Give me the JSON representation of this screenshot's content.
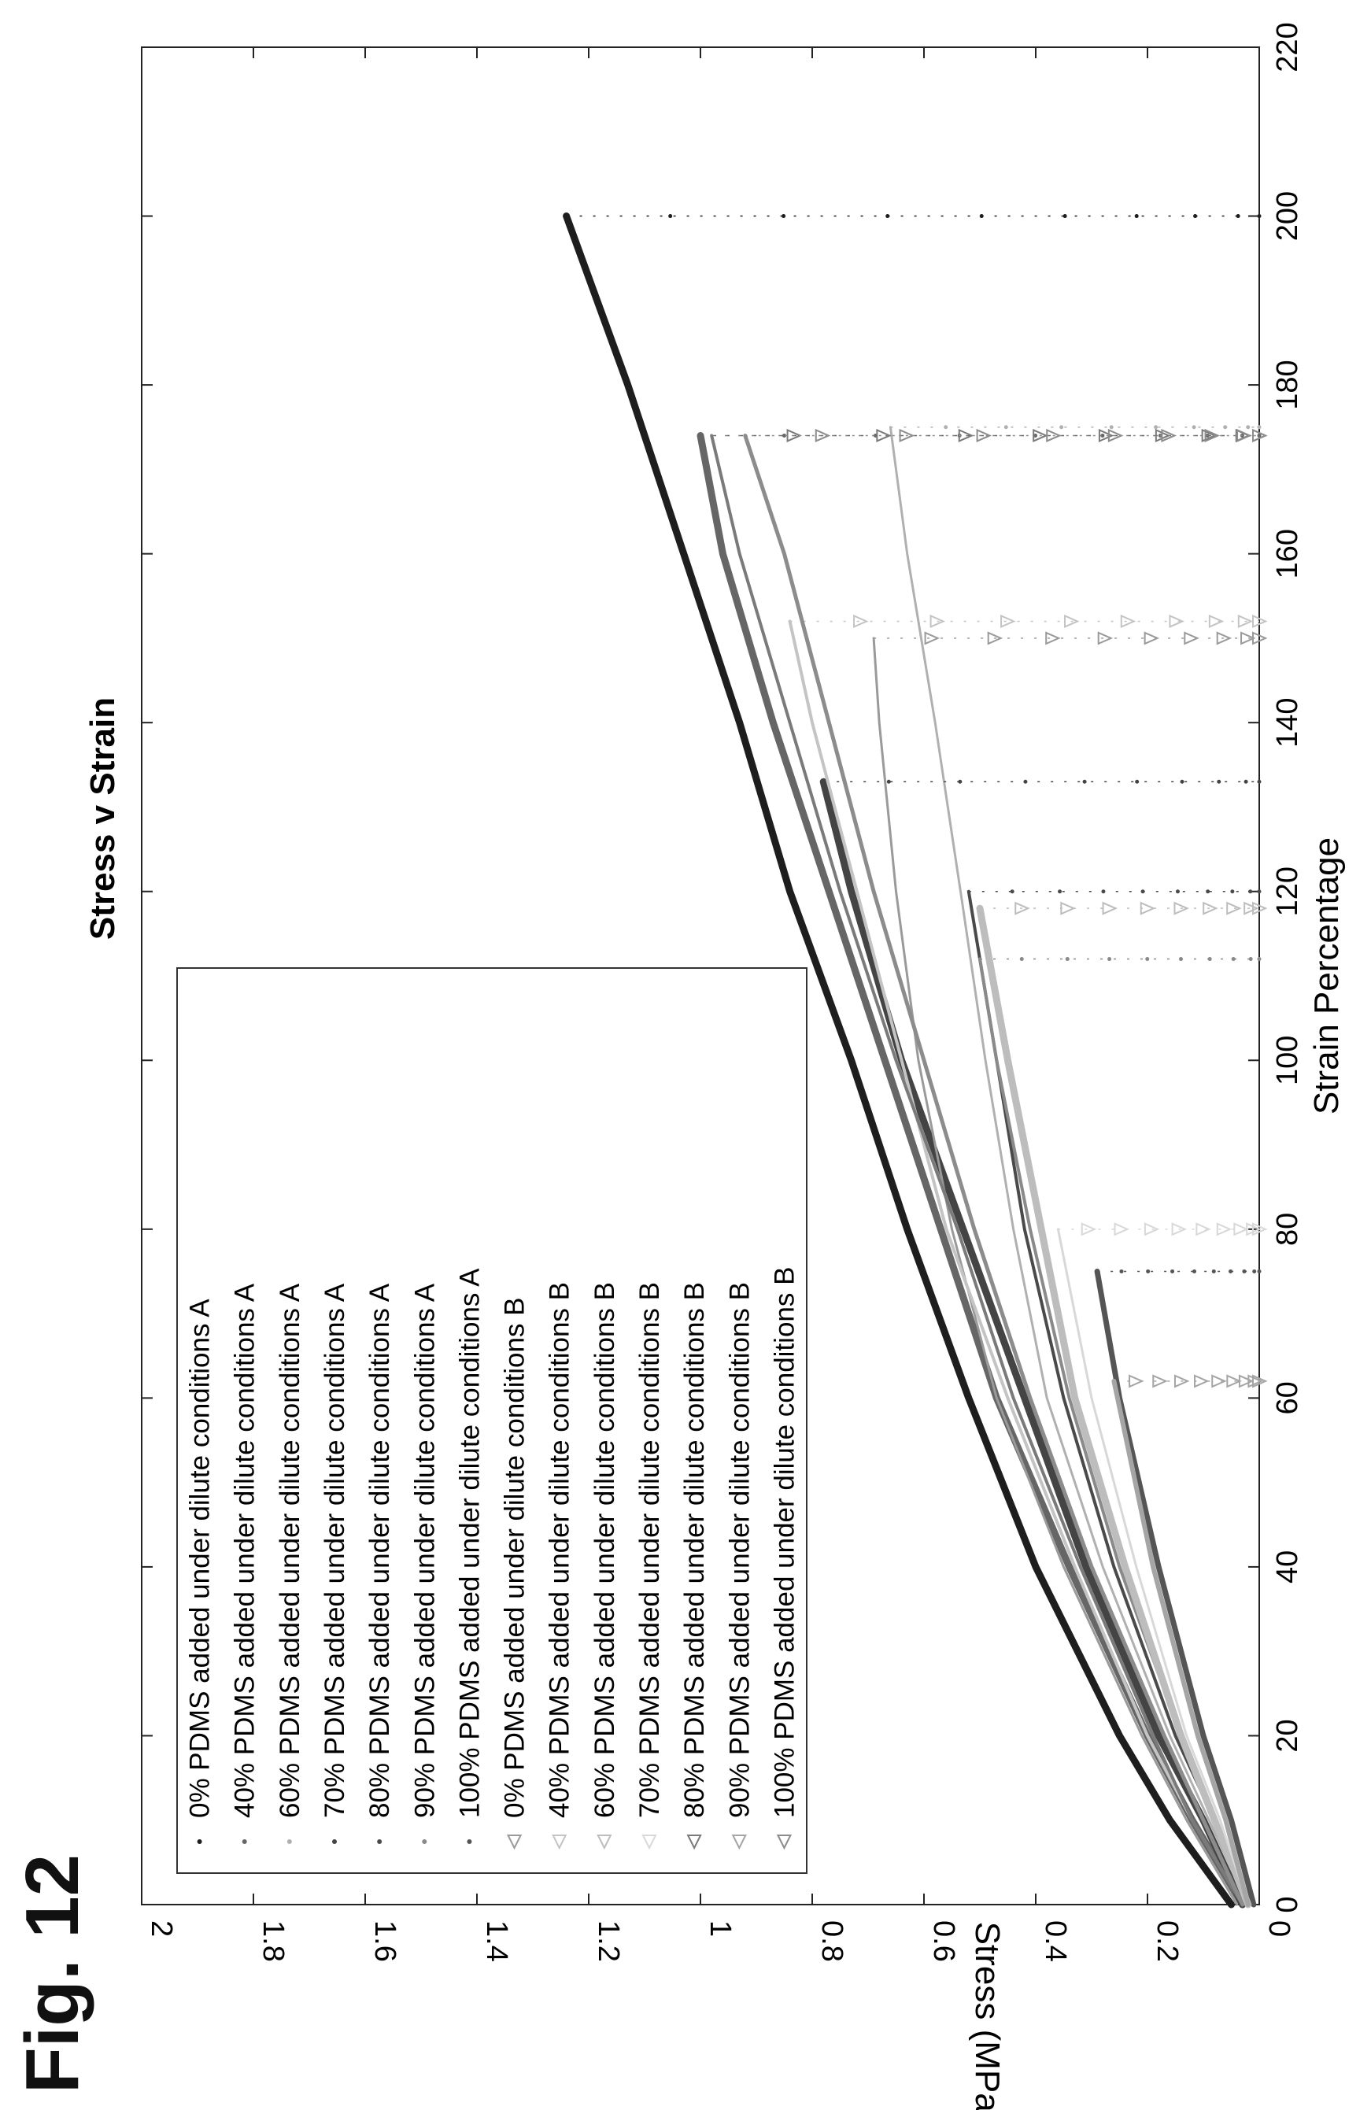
{
  "figure_label": "Fig. 12",
  "chart_data": {
    "type": "line",
    "title": "Stress v Strain",
    "xlabel": "Strain Percentage",
    "ylabel": "Stress (MPa)",
    "xlim": [
      0,
      220
    ],
    "ylim": [
      0,
      2
    ],
    "xticks": [
      0,
      20,
      40,
      60,
      80,
      100,
      120,
      140,
      160,
      180,
      200,
      220
    ],
    "yticks": [
      0,
      0.2,
      0.4,
      0.6,
      0.8,
      1,
      1.2,
      1.4,
      1.6,
      1.8,
      2
    ],
    "ytick_labels": [
      "0",
      "0.2",
      "0.4",
      "0.6",
      "0.8",
      "1",
      "1.2",
      "1.4",
      "1.6",
      "1.8",
      "2"
    ],
    "grid": false,
    "legend_position": "top-left",
    "series": [
      {
        "name": "0% PDMS added under dilute conditions A",
        "marker": "dot",
        "color": "#1e1e1e",
        "width": 9,
        "x": [
          0,
          10,
          20,
          40,
          60,
          80,
          100,
          120,
          140,
          160,
          180,
          200
        ],
        "y": [
          0.05,
          0.16,
          0.25,
          0.4,
          0.52,
          0.63,
          0.73,
          0.84,
          0.93,
          1.03,
          1.13,
          1.24
        ],
        "drop_x": 200
      },
      {
        "name": "40% PDMS added under dilute conditions A",
        "marker": "dot",
        "color": "#666666",
        "width": 9,
        "x": [
          0,
          10,
          20,
          40,
          60,
          80,
          100,
          120,
          140,
          160,
          174
        ],
        "y": [
          0.03,
          0.12,
          0.2,
          0.34,
          0.47,
          0.57,
          0.67,
          0.77,
          0.87,
          0.96,
          1.0
        ],
        "drop_x": 174
      },
      {
        "name": "60% PDMS added under dilute conditions A",
        "marker": "dot",
        "color": "#b0b0b0",
        "width": 3,
        "x": [
          0,
          10,
          20,
          40,
          60,
          80,
          100,
          118,
          140,
          160,
          175
        ],
        "y": [
          0.02,
          0.09,
          0.16,
          0.28,
          0.38,
          0.44,
          0.49,
          0.53,
          0.58,
          0.63,
          0.66
        ],
        "drop_x": 175
      },
      {
        "name": "70% PDMS added under dilute conditions A",
        "marker": "dot",
        "color": "#444444",
        "width": 9,
        "x": [
          0,
          10,
          20,
          40,
          60,
          80,
          100,
          120,
          133
        ],
        "y": [
          0.03,
          0.1,
          0.18,
          0.31,
          0.42,
          0.53,
          0.64,
          0.73,
          0.78
        ],
        "drop_x": 133
      },
      {
        "name": "80% PDMS added under dilute conditions A",
        "marker": "dot",
        "color": "#4a4a4a",
        "width": 4,
        "x": [
          0,
          10,
          20,
          40,
          60,
          80,
          100,
          120
        ],
        "y": [
          0.02,
          0.08,
          0.15,
          0.26,
          0.35,
          0.42,
          0.47,
          0.52
        ],
        "drop_x": 120
      },
      {
        "name": "90% PDMS added under dilute conditions A",
        "marker": "dot",
        "color": "#8a8a8a",
        "width": 4,
        "x": [
          0,
          10,
          20,
          40,
          60,
          80,
          100,
          112
        ],
        "y": [
          0.02,
          0.08,
          0.14,
          0.25,
          0.34,
          0.41,
          0.47,
          0.5
        ],
        "drop_x": 112
      },
      {
        "name": "100% PDMS added under dilute conditions A",
        "marker": "dot",
        "color": "#555555",
        "width": 7,
        "x": [
          0,
          10,
          20,
          40,
          60,
          75
        ],
        "y": [
          0.01,
          0.05,
          0.1,
          0.18,
          0.25,
          0.29
        ],
        "drop_x": 75
      },
      {
        "name": "0% PDMS added under dilute conditions B",
        "marker": "triangle",
        "color": "#9a9a9a",
        "width": 3,
        "x": [
          0,
          10,
          20,
          40,
          60,
          80,
          100,
          120,
          140,
          150
        ],
        "y": [
          0.04,
          0.13,
          0.21,
          0.35,
          0.47,
          0.55,
          0.61,
          0.65,
          0.68,
          0.69
        ],
        "drop_x": 150
      },
      {
        "name": "40% PDMS added under dilute conditions B",
        "marker": "triangle",
        "color": "#c4c4c4",
        "width": 4,
        "x": [
          0,
          10,
          20,
          40,
          60,
          80,
          100,
          120,
          140,
          152
        ],
        "y": [
          0.03,
          0.12,
          0.2,
          0.33,
          0.45,
          0.56,
          0.64,
          0.72,
          0.8,
          0.84
        ],
        "drop_x": 152
      },
      {
        "name": "60% PDMS added under dilute conditions B",
        "marker": "triangle",
        "color": "#bdbdbd",
        "width": 9,
        "x": [
          0,
          10,
          20,
          40,
          60,
          80,
          100,
          118
        ],
        "y": [
          0.02,
          0.08,
          0.14,
          0.24,
          0.33,
          0.39,
          0.45,
          0.5
        ],
        "drop_x": 118
      },
      {
        "name": "70% PDMS added under dilute conditions B",
        "marker": "triangle",
        "color": "#d8d8d8",
        "width": 3,
        "x": [
          0,
          10,
          20,
          40,
          60,
          80
        ],
        "y": [
          0.02,
          0.07,
          0.13,
          0.22,
          0.3,
          0.36
        ],
        "drop_x": 80
      },
      {
        "name": "80% PDMS added under dilute conditions B",
        "marker": "triangle",
        "color": "#7a7a7a",
        "width": 4,
        "x": [
          0,
          10,
          20,
          40,
          60,
          80,
          100,
          120,
          140,
          160,
          174
        ],
        "y": [
          0.03,
          0.12,
          0.19,
          0.32,
          0.44,
          0.54,
          0.65,
          0.75,
          0.84,
          0.93,
          0.98
        ],
        "drop_x": 174
      },
      {
        "name": "90% PDMS added under dilute conditions B",
        "marker": "triangle",
        "color": "#a5a5a5",
        "width": 6,
        "x": [
          0,
          10,
          20,
          40,
          62
        ],
        "y": [
          0.02,
          0.06,
          0.11,
          0.19,
          0.26
        ],
        "drop_x": 62
      },
      {
        "name": "100% PDMS added under dilute conditions B",
        "marker": "triangle",
        "color": "#8c8c8c",
        "width": 5,
        "x": [
          0,
          10,
          20,
          40,
          60,
          80,
          100,
          120,
          140,
          160,
          174
        ],
        "y": [
          0.03,
          0.1,
          0.17,
          0.3,
          0.41,
          0.51,
          0.6,
          0.69,
          0.77,
          0.85,
          0.92
        ],
        "drop_x": 174
      }
    ]
  }
}
